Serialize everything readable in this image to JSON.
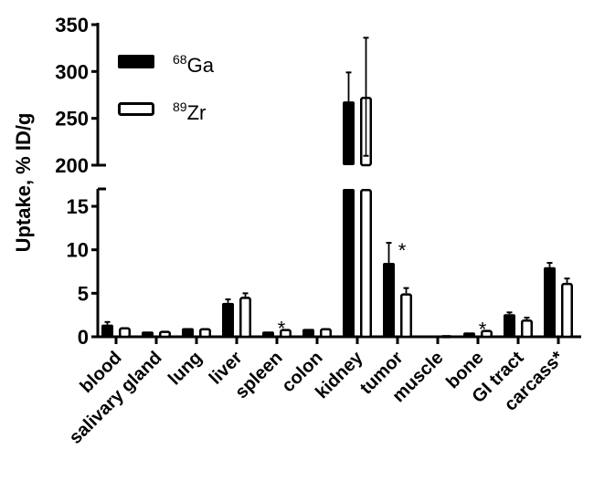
{
  "chart_data": {
    "type": "bar",
    "title": "",
    "xlabel": "",
    "ylabel": "Uptake, % ID/g",
    "y_axis_break": true,
    "ylim_lower": [
      0,
      17
    ],
    "ylim_upper": [
      200,
      350
    ],
    "yticks_lower": [
      0,
      5,
      10,
      15
    ],
    "yticks_upper": [
      200,
      250,
      300,
      350
    ],
    "grid": false,
    "legend_position": "upper-left",
    "categories": [
      "blood",
      "salivary gland",
      "lung",
      "liver",
      "spleen",
      "colon",
      "kidney",
      "tumor",
      "muscle",
      "bone",
      "GI tract",
      "carcass*"
    ],
    "series": [
      {
        "name": "68Ga",
        "isotope_mass": "68",
        "isotope_symbol": "Ga",
        "fill": "#000000",
        "values": [
          1.4,
          0.6,
          1.0,
          3.9,
          0.6,
          0.9,
          268,
          8.5,
          0.15,
          0.5,
          2.6,
          8.0
        ],
        "errors": [
          0.3,
          0.1,
          0.1,
          0.4,
          0.1,
          0.15,
          31,
          2.3,
          0.05,
          0.1,
          0.2,
          0.5
        ]
      },
      {
        "name": "89Zr",
        "isotope_mass": "89",
        "isotope_symbol": "Zr",
        "fill": "#ffffff",
        "values": [
          1.1,
          0.7,
          1.0,
          4.6,
          0.9,
          1.0,
          273,
          5.0,
          0.2,
          0.8,
          2.0,
          6.2
        ],
        "errors": [
          0.15,
          0.1,
          0.1,
          0.4,
          0.1,
          0.15,
          63,
          0.6,
          0.05,
          0.1,
          0.2,
          0.5
        ]
      }
    ],
    "annotations": [
      {
        "category": "spleen",
        "text": "*"
      },
      {
        "category": "tumor",
        "text": "*"
      },
      {
        "category": "bone",
        "text": "*"
      }
    ]
  }
}
